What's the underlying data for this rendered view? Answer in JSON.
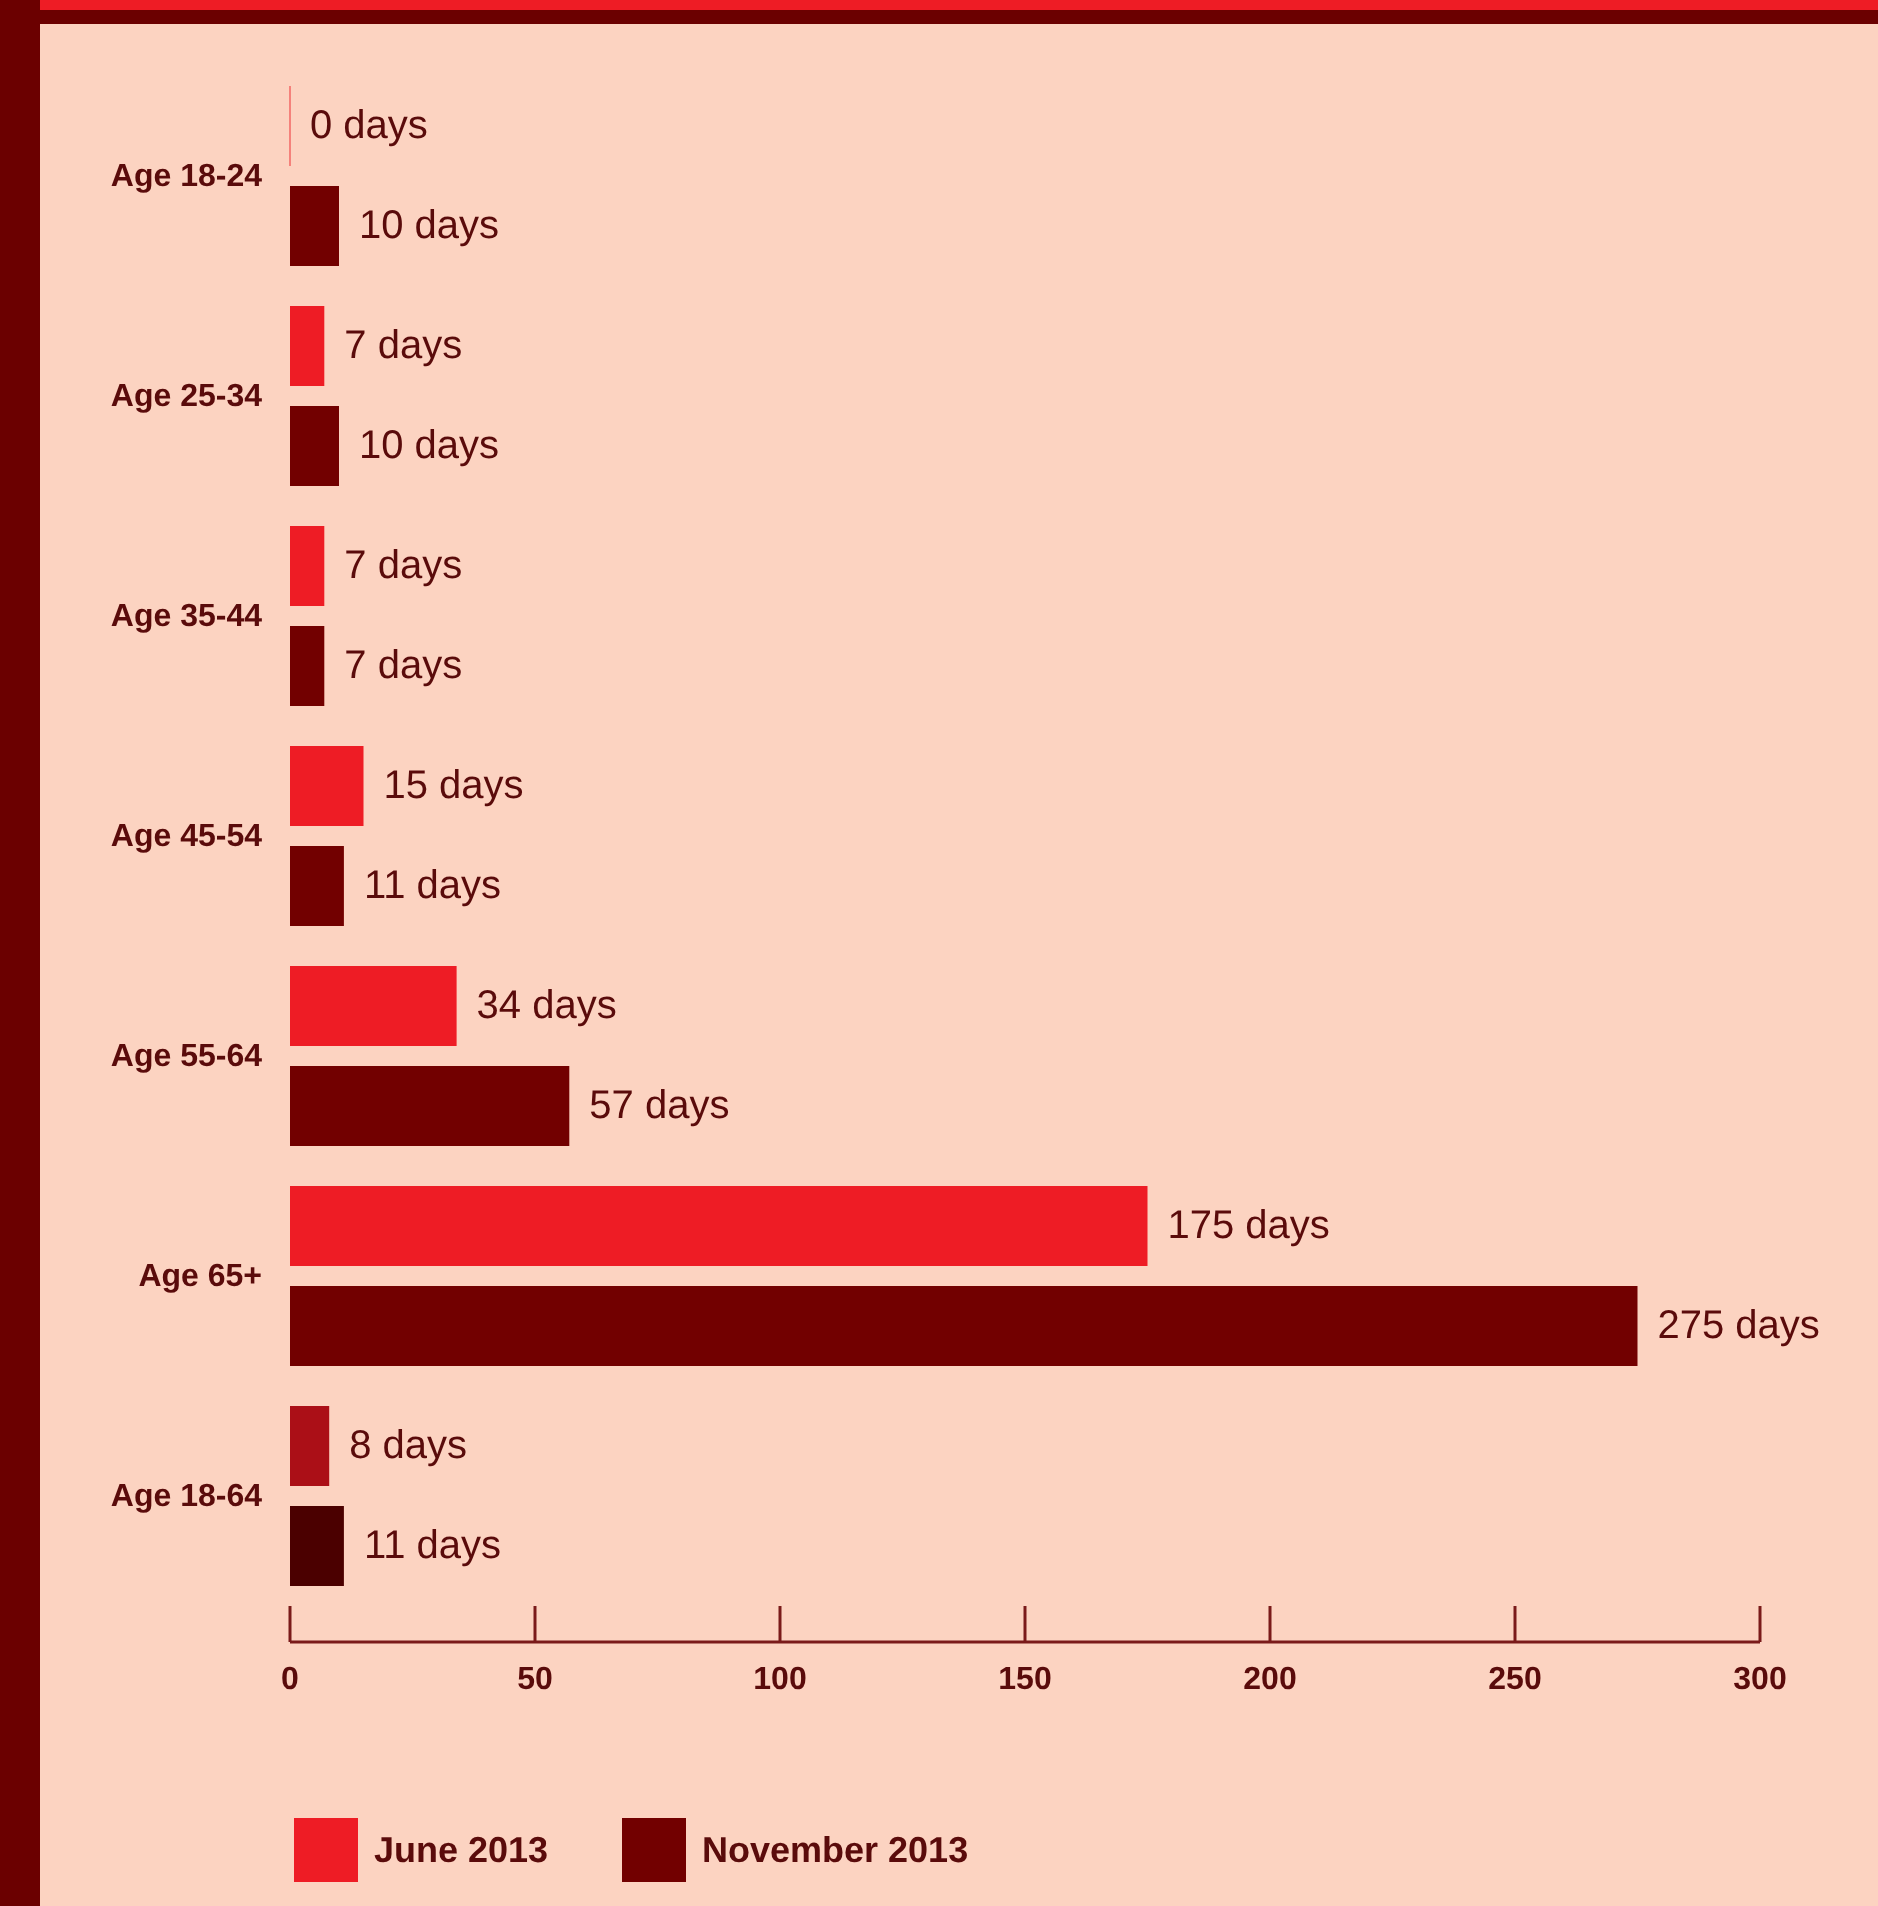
{
  "chart_data": {
    "type": "bar",
    "orientation": "horizontal",
    "categories": [
      "Age 18-24",
      "Age 25-34",
      "Age 35-44",
      "Age 45-54",
      "Age 55-64",
      "Age 65+",
      "Age 18-64"
    ],
    "series": [
      {
        "name": "June 2013",
        "color": "#ee1c25",
        "colors": [
          "#ee1c25",
          "#ee1c25",
          "#ee1c25",
          "#ee1c25",
          "#ee1c25",
          "#ee1c25",
          "#ab0f17"
        ],
        "values": [
          0,
          7,
          7,
          15,
          34,
          175,
          8
        ],
        "value_labels": [
          "0 days",
          "7 days",
          "7 days",
          "15 days",
          "34 days",
          "175 days",
          "8 days"
        ]
      },
      {
        "name": "November 2013",
        "color": "#720000",
        "colors": [
          "#720000",
          "#720000",
          "#720000",
          "#720000",
          "#720000",
          "#720000",
          "#4b0000"
        ],
        "values": [
          10,
          10,
          7,
          11,
          57,
          275,
          11
        ],
        "value_labels": [
          "10 days",
          "10 days",
          "7 days",
          "11 days",
          "57 days",
          "275 days",
          "11 days"
        ]
      }
    ],
    "xlim": [
      0,
      300
    ],
    "xticks": [
      0,
      50,
      100,
      150,
      200,
      250,
      300
    ],
    "legend": "bottom left"
  }
}
